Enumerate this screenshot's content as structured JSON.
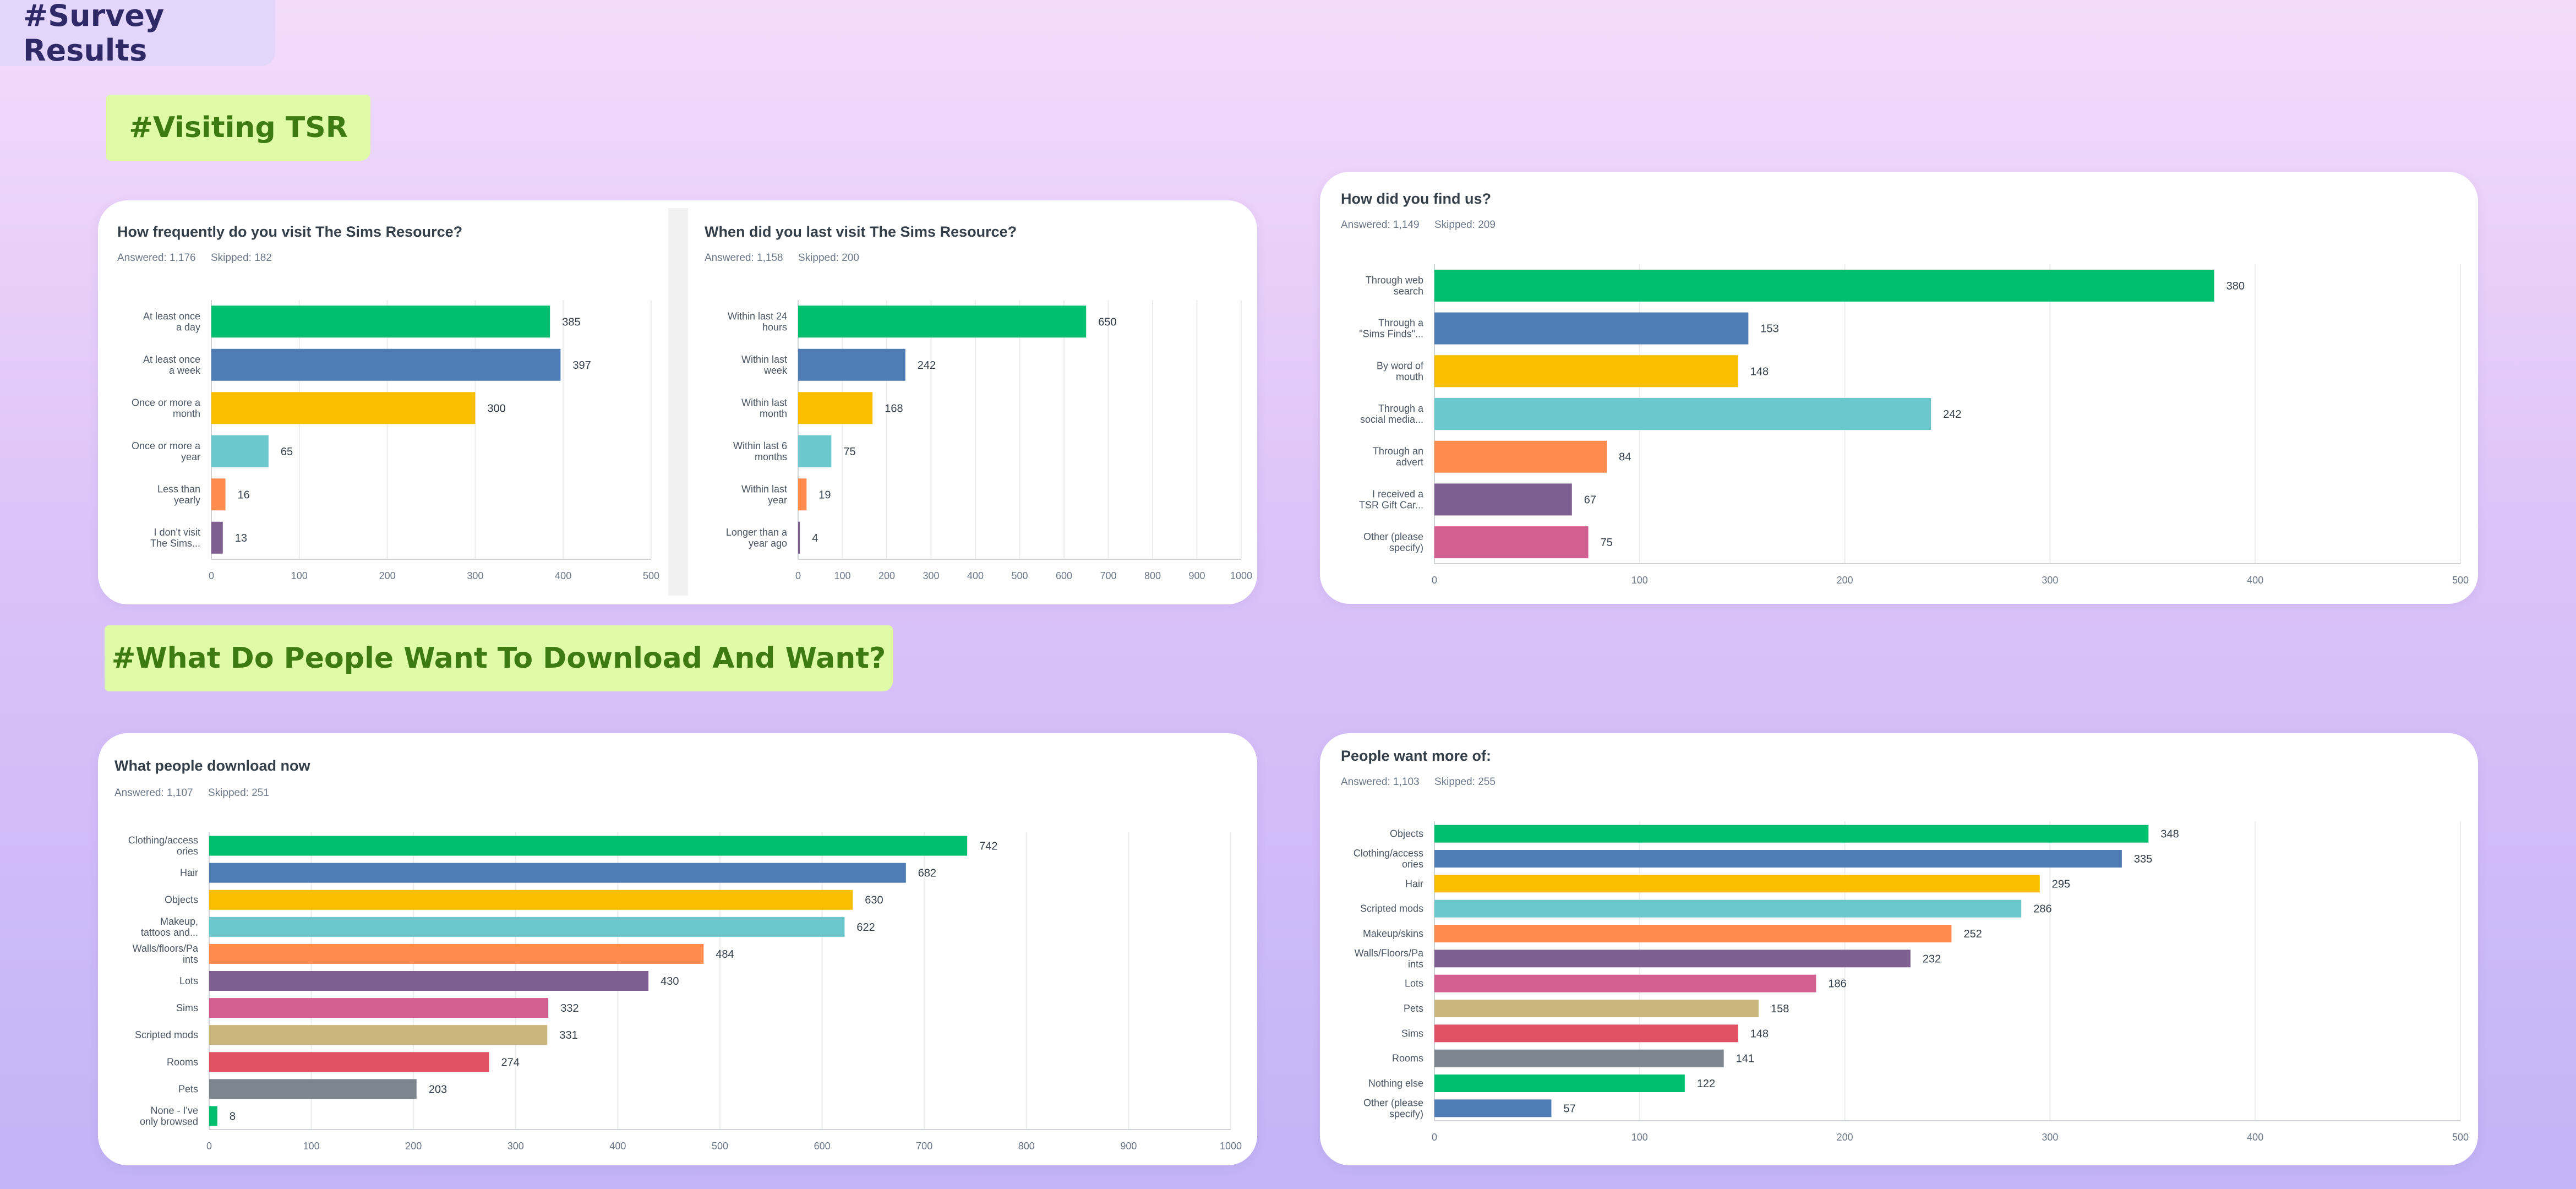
{
  "page_title": "#Survey Results",
  "sections": {
    "visiting": "#Visiting TSR",
    "download": "#What Do People Want To Download And Want?"
  },
  "colors": [
    "#00bf6f",
    "#507cb6",
    "#f9be00",
    "#6bc8cd",
    "#ff8b4f",
    "#7f5f90",
    "#d25f90",
    "#c9b77b",
    "#e05263",
    "#7d858f"
  ],
  "chart_data": [
    {
      "type": "bar",
      "orientation": "horizontal",
      "title": "How frequently do you visit The Sims Resource?",
      "answered": "Answered: 1,176",
      "skipped": "Skipped: 182",
      "categories": [
        [
          "At least once",
          "a day"
        ],
        [
          "At least once",
          "a week"
        ],
        [
          "Once or more a",
          "month"
        ],
        [
          "Once or more a",
          "year"
        ],
        [
          "Less than",
          "yearly"
        ],
        [
          "I don't visit",
          "The Sims..."
        ]
      ],
      "values": [
        385,
        397,
        300,
        65,
        16,
        13
      ],
      "xlim": [
        0,
        500
      ],
      "ticks": [
        "0",
        "100",
        "200",
        "300",
        "400",
        "500"
      ],
      "grid": true
    },
    {
      "type": "bar",
      "orientation": "horizontal",
      "title": "When did you last visit The Sims Resource?",
      "answered": "Answered: 1,158",
      "skipped": "Skipped: 200",
      "categories": [
        [
          "Within last 24",
          "hours"
        ],
        [
          "Within last",
          "week"
        ],
        [
          "Within last",
          "month"
        ],
        [
          "Within last 6",
          "months"
        ],
        [
          "Within last",
          "year"
        ],
        [
          "Longer than a",
          "year ago"
        ]
      ],
      "values": [
        650,
        242,
        168,
        75,
        19,
        4
      ],
      "xlim": [
        0,
        1000
      ],
      "ticks": [
        "0",
        "100",
        "200",
        "300",
        "400",
        "500",
        "600",
        "700",
        "800",
        "900",
        "1000"
      ],
      "grid": true
    },
    {
      "type": "bar",
      "orientation": "horizontal",
      "title": "How did you find us?",
      "answered": "Answered: 1,149",
      "skipped": "Skipped: 209",
      "categories": [
        [
          "Through web",
          "search"
        ],
        [
          "Through a",
          "\"Sims Finds\"..."
        ],
        [
          "By word of",
          "mouth"
        ],
        [
          "Through a",
          "social media..."
        ],
        [
          "Through an",
          "advert"
        ],
        [
          "I received a",
          "TSR Gift Car..."
        ],
        [
          "Other (please",
          "specify)"
        ]
      ],
      "values": [
        380,
        153,
        148,
        242,
        84,
        67,
        75
      ],
      "xlim": [
        0,
        500
      ],
      "ticks": [
        "0",
        "100",
        "200",
        "300",
        "400",
        "500"
      ],
      "grid": true
    },
    {
      "type": "bar",
      "orientation": "horizontal",
      "title": "What people download now",
      "answered": "Answered: 1,107",
      "skipped": "Skipped: 251",
      "categories": [
        [
          "Clothing/access",
          "ories"
        ],
        [
          "Hair"
        ],
        [
          "Objects"
        ],
        [
          "Makeup,",
          "tattoos and..."
        ],
        [
          "Walls/floors/Pa",
          "ints"
        ],
        [
          "Lots"
        ],
        [
          "Sims"
        ],
        [
          "Scripted mods"
        ],
        [
          "Rooms"
        ],
        [
          "Pets"
        ],
        [
          "None - I've",
          "only browsed"
        ]
      ],
      "values": [
        742,
        682,
        630,
        622,
        484,
        430,
        332,
        331,
        274,
        203,
        8
      ],
      "xlim": [
        0,
        1000
      ],
      "ticks": [
        "0",
        "100",
        "200",
        "300",
        "400",
        "500",
        "600",
        "700",
        "800",
        "900",
        "1000"
      ],
      "grid": true
    },
    {
      "type": "bar",
      "orientation": "horizontal",
      "title": "People want more of:",
      "answered": "Answered: 1,103",
      "skipped": "Skipped: 255",
      "categories": [
        [
          "Objects"
        ],
        [
          "Clothing/access",
          "ories"
        ],
        [
          "Hair"
        ],
        [
          "Scripted mods"
        ],
        [
          "Makeup/skins"
        ],
        [
          "Walls/Floors/Pa",
          "ints"
        ],
        [
          "Lots"
        ],
        [
          "Pets"
        ],
        [
          "Sims"
        ],
        [
          "Rooms"
        ],
        [
          "Nothing else"
        ],
        [
          "Other (please",
          "specify)"
        ]
      ],
      "values": [
        348,
        335,
        295,
        286,
        252,
        232,
        186,
        158,
        148,
        141,
        122,
        57
      ],
      "xlim": [
        0,
        500
      ],
      "ticks": [
        "0",
        "100",
        "200",
        "300",
        "400",
        "500"
      ],
      "grid": true
    }
  ]
}
